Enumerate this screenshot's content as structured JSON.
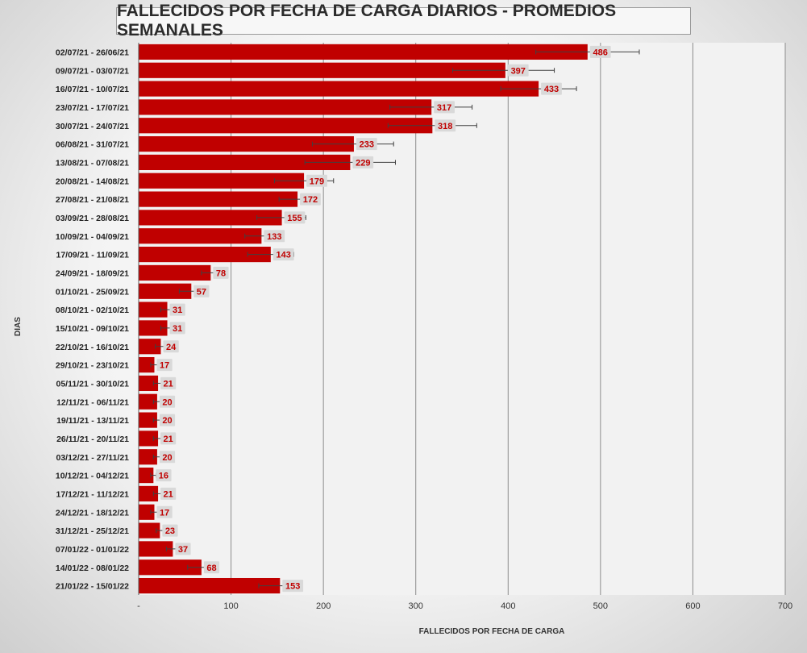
{
  "chart_data": {
    "type": "bar",
    "orientation": "horizontal",
    "title": "FALLECIDOS POR FECHA DE CARGA DIARIOS - PROMEDIOS SEMANALES",
    "xlabel": "FALLECIDOS POR FECHA DE CARGA",
    "ylabel": "DIAS",
    "xlim": [
      0,
      700
    ],
    "x_ticks": [
      "-",
      "100",
      "200",
      "300",
      "400",
      "500",
      "600",
      "700"
    ],
    "grid": "vertical",
    "bar_color": "#c00000",
    "label_color": "#c00000",
    "label_bg": "#d9d9d9",
    "categories": [
      "02/07/21 - 26/06/21",
      "09/07/21 - 03/07/21",
      "16/07/21 - 10/07/21",
      "23/07/21 - 17/07/21",
      "30/07/21 - 24/07/21",
      "06/08/21 - 31/07/21",
      "13/08/21 - 07/08/21",
      "20/08/21 - 14/08/21",
      "27/08/21 - 21/08/21",
      "03/09/21 - 28/08/21",
      "10/09/21 - 04/09/21",
      "17/09/21 - 11/09/21",
      "24/09/21 - 18/09/21",
      "01/10/21 - 25/09/21",
      "08/10/21 - 02/10/21",
      "15/10/21 - 09/10/21",
      "22/10/21 - 16/10/21",
      "29/10/21 - 23/10/21",
      "05/11/21 - 30/10/21",
      "12/11/21 - 06/11/21",
      "19/11/21 - 13/11/21",
      "26/11/21 - 20/11/21",
      "03/12/21 - 27/11/21",
      "10/12/21 - 04/12/21",
      "17/12/21 - 11/12/21",
      "24/12/21 - 18/12/21",
      "31/12/21 - 25/12/21",
      "07/01/22 - 01/01/22",
      "14/01/22 - 08/01/22",
      "21/01/22 - 15/01/22"
    ],
    "values": [
      486,
      397,
      433,
      317,
      318,
      233,
      229,
      179,
      172,
      155,
      133,
      143,
      78,
      57,
      31,
      31,
      24,
      17,
      21,
      20,
      20,
      21,
      20,
      16,
      21,
      17,
      23,
      37,
      68,
      153
    ],
    "error_low": [
      430,
      340,
      392,
      272,
      270,
      188,
      180,
      147,
      152,
      128,
      115,
      118,
      68,
      44,
      24,
      24,
      18,
      13,
      16,
      16,
      16,
      16,
      16,
      13,
      16,
      13,
      19,
      30,
      53,
      130
    ],
    "error_high": [
      542,
      450,
      474,
      361,
      366,
      276,
      278,
      211,
      190,
      181,
      151,
      168,
      88,
      70,
      38,
      38,
      30,
      21,
      26,
      24,
      24,
      26,
      24,
      19,
      26,
      21,
      27,
      44,
      83,
      176
    ]
  }
}
